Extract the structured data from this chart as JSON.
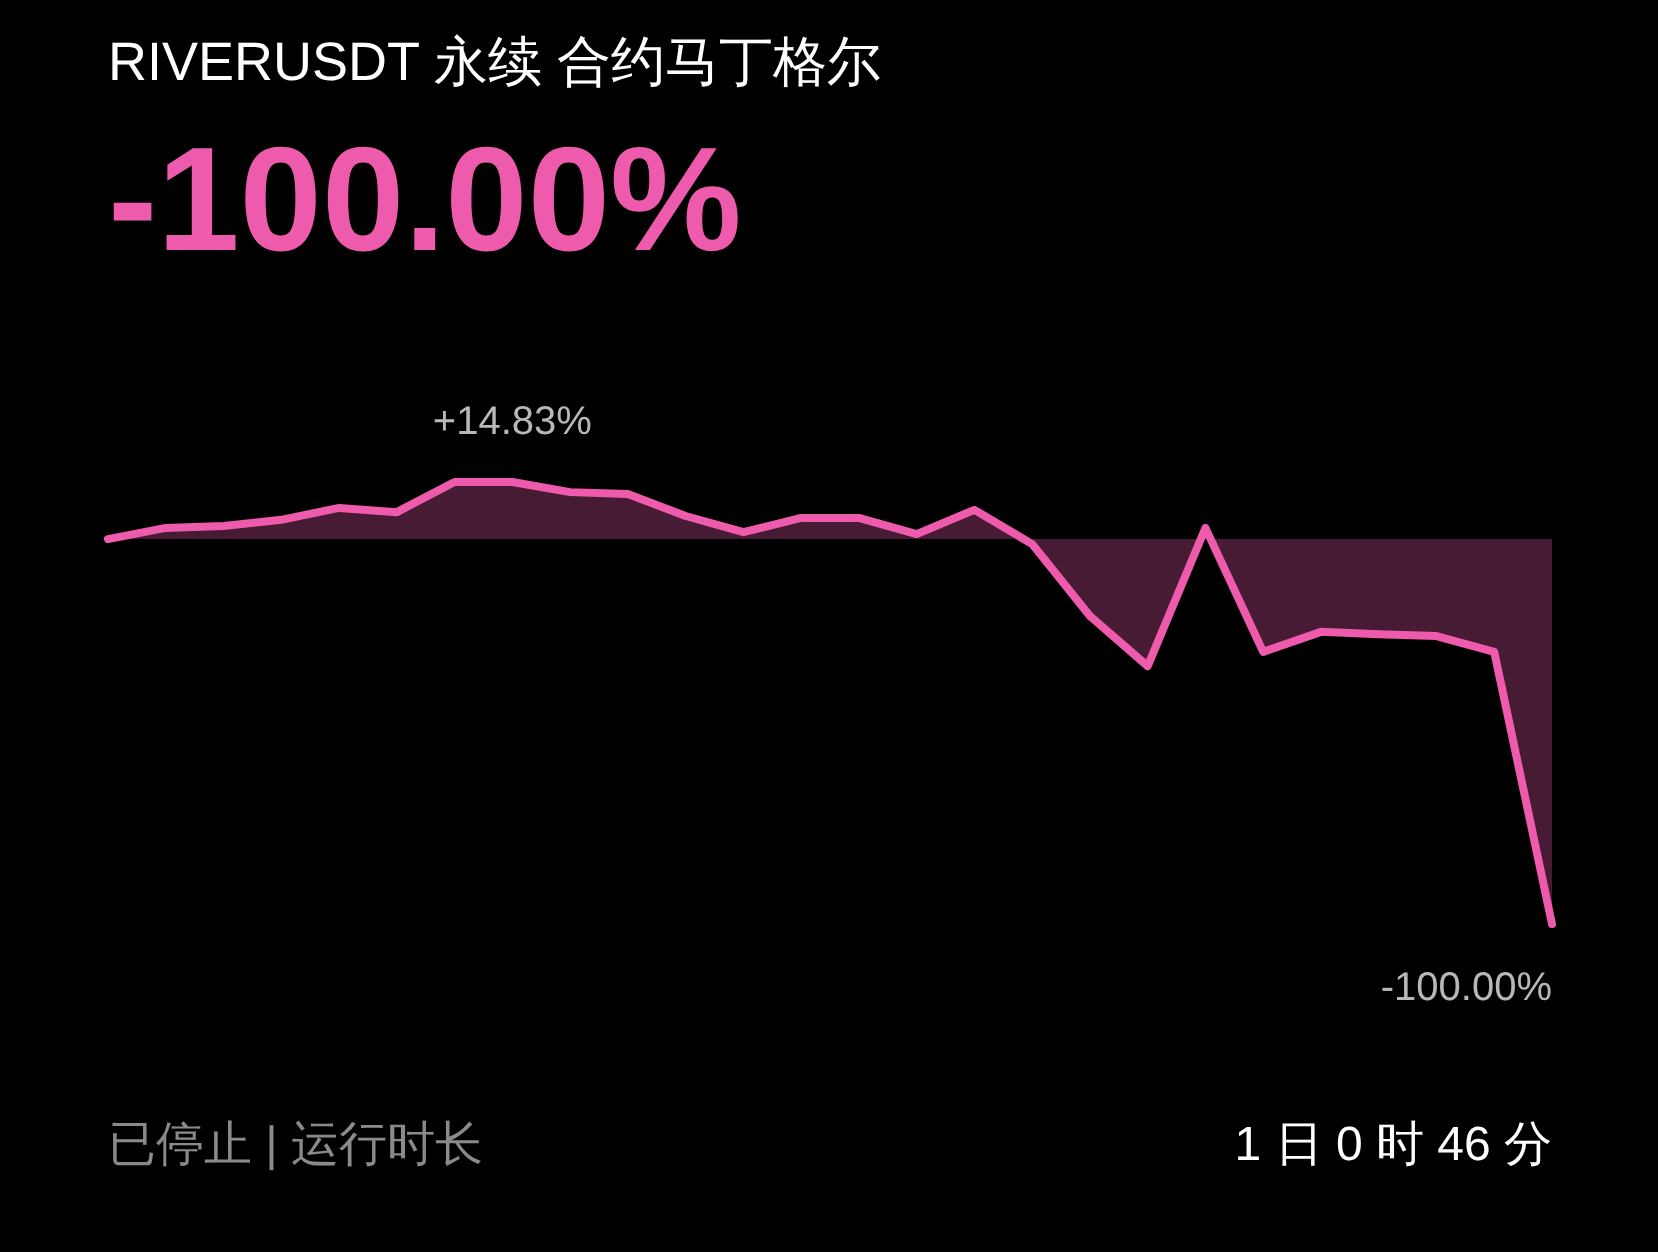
{
  "chart_data": {
    "type": "area",
    "title": "RIVERUSDT 永续 合约马丁格尔",
    "subtitle": "-100.00%",
    "categories": [
      null,
      null,
      null,
      null,
      null,
      null,
      null,
      null,
      null,
      null,
      null,
      null,
      null,
      null,
      null,
      null,
      null,
      null,
      null,
      null,
      null,
      null,
      null,
      null,
      null,
      null
    ],
    "series": [
      {
        "color": "#ee5aac",
        "values": [
          0,
          2.9,
          3.4,
          5.0,
          8.1,
          7.0,
          14.83,
          14.83,
          12.2,
          11.7,
          6.0,
          1.8,
          5.5,
          5.5,
          1.3,
          7.6,
          -1.3,
          -20.0,
          -33.0,
          2.9,
          -29.3,
          -24.1,
          -24.7,
          -25.2,
          -29.3,
          -100
        ],
        "value_labels": [
          null,
          null,
          null,
          null,
          null,
          null,
          null,
          "+14.83%",
          null,
          null,
          null,
          null,
          null,
          null,
          null,
          null,
          null,
          null,
          null,
          null,
          null,
          null,
          null,
          null,
          null,
          "-100.00%"
        ]
      }
    ],
    "annotations": [
      "已停止 | 运行时长",
      "1 日 0 时 46 分"
    ],
    "grid": false
  }
}
